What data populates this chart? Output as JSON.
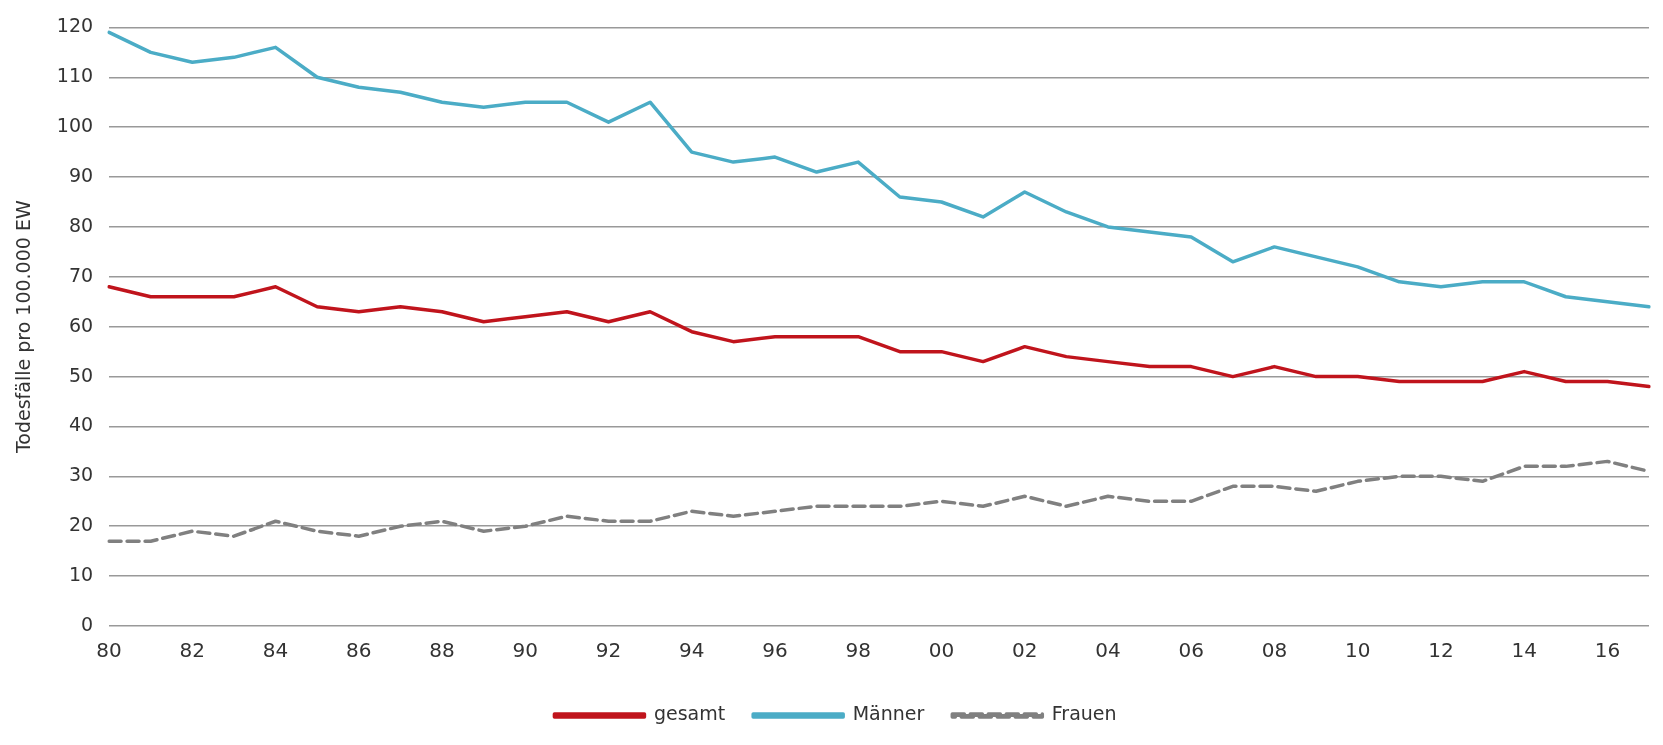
{
  "chart_data": {
    "type": "line",
    "ylabel": "Todesfälle pro 100.000 EW",
    "categories": [
      "80",
      null,
      "82",
      null,
      "84",
      null,
      "86",
      null,
      "88",
      null,
      "90",
      null,
      "92",
      null,
      "94",
      null,
      "96",
      null,
      "98",
      null,
      "00",
      null,
      "02",
      null,
      "04",
      null,
      "06",
      null,
      "08",
      null,
      "10",
      null,
      "12",
      null,
      "14",
      null,
      "16",
      null
    ],
    "series": [
      {
        "name": "gesamt",
        "color": "#c0141c",
        "line_style": "solid",
        "values": [
          68,
          66,
          66,
          66,
          68,
          64,
          63,
          64,
          63,
          61,
          62,
          63,
          61,
          63,
          59,
          57,
          58,
          58,
          58,
          55,
          55,
          53,
          56,
          54,
          53,
          52,
          52,
          50,
          52,
          50,
          50,
          49,
          49,
          49,
          51,
          49,
          49,
          48
        ]
      },
      {
        "name": "Männer",
        "color": "#4bacc6",
        "line_style": "solid",
        "values": [
          119,
          115,
          113,
          114,
          116,
          110,
          108,
          107,
          105,
          104,
          105,
          105,
          101,
          105,
          95,
          93,
          94,
          91,
          93,
          86,
          85,
          82,
          87,
          83,
          80,
          79,
          78,
          73,
          76,
          74,
          72,
          69,
          68,
          69,
          69,
          66,
          65,
          64
        ]
      },
      {
        "name": "Frauen",
        "color": "#808080",
        "line_style": "dashed",
        "values": [
          17,
          17,
          19,
          18,
          21,
          19,
          18,
          20,
          21,
          19,
          20,
          22,
          21,
          21,
          23,
          22,
          23,
          24,
          24,
          24,
          25,
          24,
          26,
          24,
          26,
          25,
          25,
          28,
          28,
          27,
          29,
          30,
          30,
          29,
          32,
          32,
          33,
          31
        ]
      }
    ],
    "ylim": [
      0,
      120
    ],
    "yticks": [
      0,
      10,
      20,
      30,
      40,
      50,
      60,
      70,
      80,
      90,
      100,
      110,
      120
    ],
    "grid": "y",
    "legend": "bottom",
    "marker": "none"
  }
}
